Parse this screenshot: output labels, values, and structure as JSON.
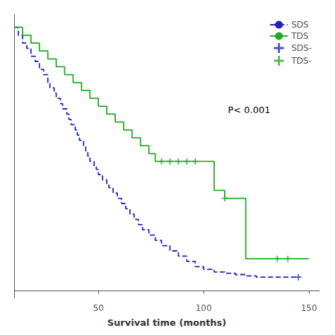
{
  "chart_data": {
    "type": "line",
    "xlabel": "Survival time (months)",
    "xlim": [
      10,
      155
    ],
    "ylim": [
      -0.03,
      1.05
    ],
    "xticks": [
      50,
      100,
      150
    ],
    "grid": false,
    "legend": "upper right",
    "tick_labels": "x",
    "annotation": "P< 0.001",
    "series": [
      {
        "name": "SDS",
        "type": "step",
        "line_style": "dashed",
        "color": "#2222bb",
        "x": [
          10,
          12,
          14,
          16,
          18,
          20,
          22,
          24,
          26,
          27,
          29,
          30,
          32,
          33,
          35,
          36,
          37,
          39,
          40,
          41,
          43,
          44,
          45,
          46,
          48,
          49,
          50,
          52,
          54,
          55,
          57,
          59,
          61,
          63,
          65,
          67,
          69,
          71,
          74,
          77,
          80,
          84,
          88,
          92,
          96,
          100,
          105,
          110,
          115,
          120,
          125,
          130,
          140,
          145
        ],
        "values": [
          1.0,
          0.97,
          0.94,
          0.92,
          0.89,
          0.87,
          0.84,
          0.82,
          0.79,
          0.77,
          0.75,
          0.73,
          0.71,
          0.69,
          0.67,
          0.65,
          0.63,
          0.61,
          0.59,
          0.57,
          0.55,
          0.53,
          0.51,
          0.49,
          0.47,
          0.46,
          0.44,
          0.42,
          0.4,
          0.39,
          0.37,
          0.35,
          0.33,
          0.31,
          0.29,
          0.27,
          0.25,
          0.23,
          0.21,
          0.19,
          0.17,
          0.15,
          0.13,
          0.11,
          0.09,
          0.08,
          0.07,
          0.065,
          0.06,
          0.055,
          0.05,
          0.05,
          0.05,
          0.05
        ]
      },
      {
        "name": "TDS",
        "type": "step",
        "line_style": "solid",
        "color": "#22aa22",
        "x": [
          10,
          14,
          18,
          22,
          26,
          30,
          34,
          38,
          42,
          46,
          50,
          54,
          58,
          62,
          66,
          70,
          74,
          77,
          80,
          84,
          88,
          92,
          96,
          100,
          105,
          110,
          115,
          120,
          125,
          130,
          135,
          140,
          150
        ],
        "values": [
          1.0,
          0.97,
          0.94,
          0.91,
          0.88,
          0.85,
          0.82,
          0.79,
          0.76,
          0.73,
          0.7,
          0.67,
          0.64,
          0.61,
          0.58,
          0.55,
          0.52,
          0.49,
          0.49,
          0.49,
          0.49,
          0.49,
          0.49,
          0.49,
          0.38,
          0.35,
          0.35,
          0.12,
          0.12,
          0.12,
          0.12,
          0.12,
          0.12
        ]
      },
      {
        "name": "SDS-",
        "type": "scatter",
        "marker": "plus",
        "color": "#2222bb",
        "x": [
          145
        ],
        "values": [
          0.05
        ]
      },
      {
        "name": "TDS-",
        "type": "scatter",
        "marker": "plus",
        "color": "#22aa22",
        "x": [
          80,
          84,
          88,
          92,
          96,
          110,
          135,
          140
        ],
        "values": [
          0.49,
          0.49,
          0.49,
          0.49,
          0.49,
          0.35,
          0.12,
          0.12
        ]
      }
    ]
  }
}
